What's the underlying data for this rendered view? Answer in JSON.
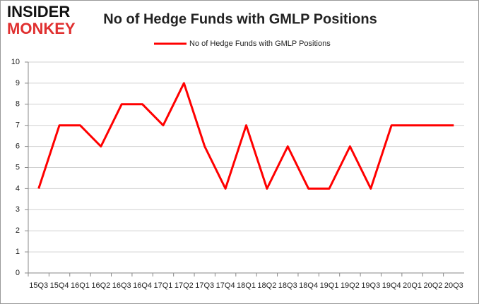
{
  "logo": {
    "line1": "INSIDER",
    "line2": "MONKEY"
  },
  "chart_data": {
    "type": "line",
    "title": "No of Hedge Funds with GMLP Positions",
    "categories": [
      "15Q3",
      "15Q4",
      "16Q1",
      "16Q2",
      "16Q3",
      "16Q4",
      "17Q1",
      "17Q2",
      "17Q3",
      "17Q4",
      "18Q1",
      "18Q2",
      "18Q3",
      "18Q4",
      "19Q1",
      "19Q2",
      "19Q3",
      "19Q4",
      "20Q1",
      "20Q2",
      "20Q3"
    ],
    "series": [
      {
        "name": "No of Hedge Funds with GMLP Positions",
        "color": "#ff0000",
        "values": [
          4,
          7,
          7,
          6,
          8,
          8,
          7,
          9,
          6,
          4,
          7,
          4,
          6,
          4,
          4,
          6,
          4,
          7,
          7,
          7,
          7
        ]
      }
    ],
    "ylim": [
      0,
      10
    ],
    "yticks": [
      0,
      1,
      2,
      3,
      4,
      5,
      6,
      7,
      8,
      9,
      10
    ],
    "grid": true,
    "legend": "top"
  }
}
